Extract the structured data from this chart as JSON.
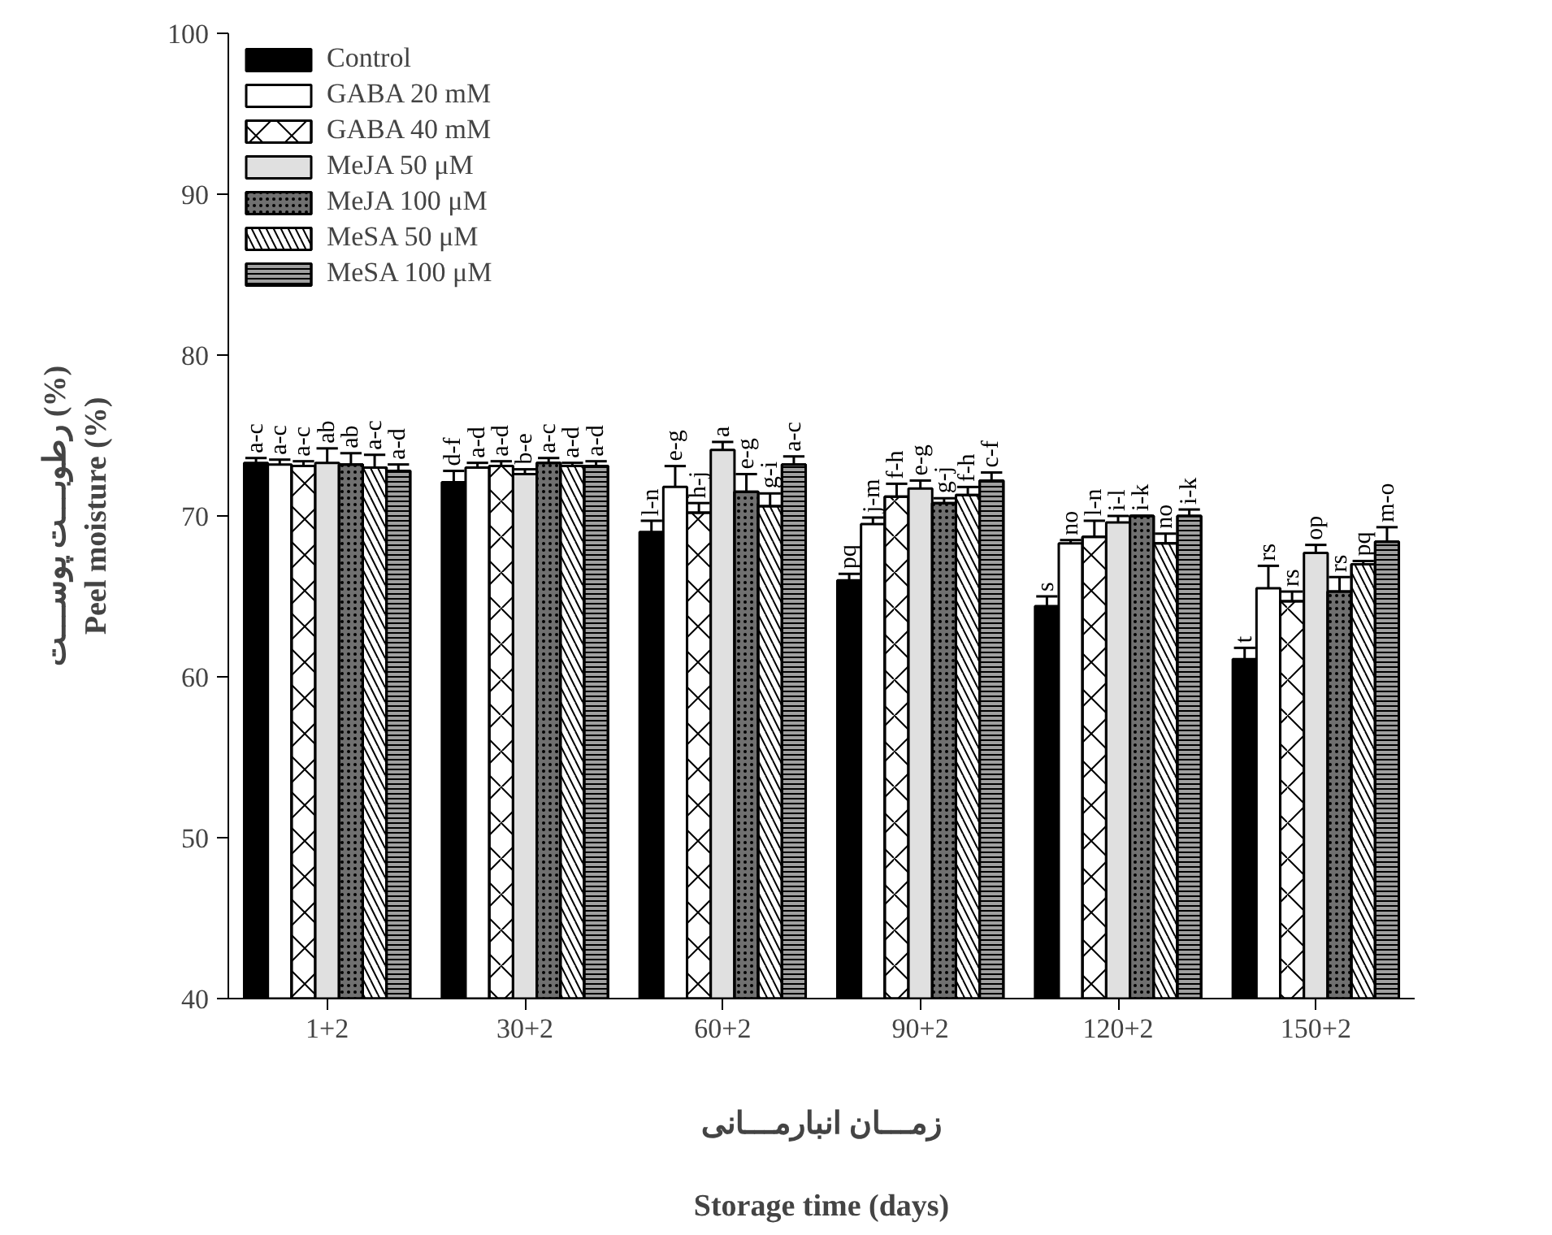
{
  "chart_data": {
    "type": "bar",
    "xlabel": "زمـــان انبارمـــانی\n\nStorage time (days)",
    "ylabel": "رطوبـــت پوســـت (%)\nPeel moisture (%)",
    "categories": [
      "1+2",
      "30+2",
      "60+2",
      "90+2",
      "120+2",
      "150+2"
    ],
    "ylim": [
      40,
      100
    ],
    "yticks": [
      40,
      50,
      60,
      70,
      80,
      90,
      100
    ],
    "grid": false,
    "legend": "top left",
    "series": [
      {
        "name": "Control",
        "color": "#000000",
        "values": [
          73.3,
          72.1,
          69.0,
          66.0,
          64.4,
          61.1
        ],
        "errors": [
          0.3,
          0.7,
          0.7,
          0.4,
          0.6,
          0.7
        ],
        "value_labels": [
          "a-c",
          "d-f",
          "l-n",
          "pq",
          "s",
          "t"
        ]
      },
      {
        "name": "GABA 20 mM",
        "color": "#ffffff",
        "values": [
          73.2,
          73.0,
          71.8,
          69.5,
          68.3,
          65.5
        ],
        "errors": [
          0.3,
          0.3,
          1.3,
          0.4,
          0.2,
          1.4
        ],
        "value_labels": [
          "a-c",
          "a-d",
          "e-g",
          "j-m",
          "no",
          "rs"
        ]
      },
      {
        "name": "GABA 40 mM",
        "color": "#ffffff",
        "values": [
          73.1,
          73.1,
          70.2,
          71.2,
          68.7,
          64.7
        ],
        "errors": [
          0.3,
          0.3,
          0.6,
          0.8,
          1.0,
          0.6
        ],
        "value_labels": [
          "a-c",
          "a-d",
          "h-j",
          "f-h",
          "l-n",
          "rs"
        ]
      },
      {
        "name": "MeJA 50 μM",
        "color": "#e0e0e0",
        "values": [
          73.3,
          72.6,
          74.1,
          71.7,
          69.6,
          67.7
        ],
        "errors": [
          0.9,
          0.3,
          0.5,
          0.5,
          0.4,
          0.5
        ],
        "value_labels": [
          "ab",
          "b-e",
          "a",
          "e-g",
          "i-l",
          "op"
        ]
      },
      {
        "name": "MeJA 100 μM",
        "color": "#707070",
        "values": [
          73.2,
          73.3,
          71.5,
          70.8,
          70.0,
          65.3
        ],
        "errors": [
          0.7,
          0.3,
          1.1,
          0.3,
          0.0,
          0.9
        ],
        "value_labels": [
          "ab",
          "a-c",
          "e-g",
          "g-j",
          "i-k",
          "rs"
        ]
      },
      {
        "name": "MeSA 50 μM",
        "color": "#ffffff",
        "values": [
          73.0,
          73.1,
          70.6,
          71.3,
          68.3,
          67.0
        ],
        "errors": [
          0.8,
          0.2,
          0.8,
          0.5,
          0.6,
          0.2
        ],
        "value_labels": [
          "a-c",
          "a-d",
          "g-i",
          "f-h",
          "no",
          "pq"
        ]
      },
      {
        "name": "MeSA 100 μM",
        "color": "#a0a0a0",
        "values": [
          72.8,
          73.1,
          73.2,
          72.2,
          70.0,
          68.4
        ],
        "errors": [
          0.4,
          0.3,
          0.5,
          0.5,
          0.4,
          0.9
        ],
        "value_labels": [
          "a-d",
          "a-d",
          "a-c",
          "c-f",
          "i-k",
          "m-o"
        ]
      }
    ]
  }
}
